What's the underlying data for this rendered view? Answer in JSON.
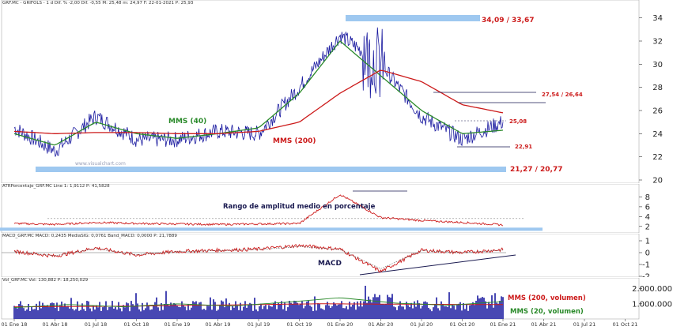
{
  "header": {
    "price": "GRF.MC - GRIFOLS - 1 d  Dif. % -2,00  Dif. -0,55  M: 25,48  m: 24,97  F: 22-01-2021  P: 25,93",
    "atr": "ATRPorcentaje_GRF.MC Line 1: 1,9112  P: 41,5828",
    "macd": "MACD_GRF.MC MACD: 0,2435  MediaSIG: 0,0761  Band_MACD: 0,0000  P: 21,7889",
    "vol": "Vol_GRF.MC  Vol: 130,882  P: 18,250,029"
  },
  "annotations": {
    "resistance": "34,09 / 33,67",
    "resistance2": "27,54 / 26,64",
    "level_25": "25,08",
    "level_22": "22,91",
    "support": "21,27 / 20,77",
    "mms40": "MMS (40)",
    "mms200": "MMS (200)",
    "atr_title": "Rango de amplitud medio en porcentaje",
    "macd_title": "MACD",
    "vol_mms200": "MMS (200, volumen)",
    "vol_mms20": "MMS (20, volumen)",
    "watermark": "www.visualchart.com"
  },
  "colors": {
    "price": "#1a1aa0",
    "mms40": "#2a8a2a",
    "mms200": "#cc1a1a",
    "support_band": "#9ec8f0",
    "annotation_red": "#cc1a1a",
    "annotation_green": "#2a8a2a",
    "annotation_navy": "#1a1a50"
  },
  "chart_data": [
    {
      "type": "line",
      "name": "price",
      "x": [
        "01 Ene 18",
        "01 Abr 18",
        "01 Jul 18",
        "01 Oct 18",
        "01 Ene 19",
        "01 Abr 19",
        "01 Jul 19",
        "01 Oct 19",
        "01 Ene 20",
        "01 Abr 20",
        "01 Jul 20",
        "01 Oct 20",
        "01 Ene 21"
      ],
      "series": [
        {
          "name": "Price",
          "values": [
            24.5,
            22.5,
            25.5,
            23.5,
            23.5,
            24.2,
            24.0,
            28.0,
            32.5,
            30.0,
            25.5,
            23.5,
            25.0
          ]
        },
        {
          "name": "MMS (40)",
          "values": [
            24.0,
            23.0,
            25.0,
            24.0,
            23.6,
            24.0,
            24.5,
            27.5,
            32.0,
            29.0,
            26.0,
            24.0,
            24.3
          ]
        },
        {
          "name": "MMS (200)",
          "values": [
            24.2,
            24.0,
            24.1,
            24.1,
            24.0,
            24.0,
            24.2,
            25.0,
            27.5,
            29.5,
            28.5,
            26.5,
            25.8
          ]
        }
      ],
      "ylim": [
        20,
        35
      ],
      "yticks": [
        "20",
        "22",
        "24",
        "26",
        "28",
        "30",
        "32",
        "34"
      ]
    },
    {
      "type": "line",
      "name": "atr",
      "values": [
        2.6,
        2.4,
        2.8,
        2.6,
        2.5,
        2.4,
        2.5,
        2.6,
        8.5,
        3.8,
        3.2,
        2.8,
        2.3
      ],
      "ylim": [
        1,
        10
      ],
      "yticks": [
        "2",
        "4",
        "6",
        "8"
      ]
    },
    {
      "type": "line",
      "name": "macd",
      "values": [
        0.1,
        -0.3,
        0.4,
        -0.2,
        0.1,
        0.2,
        0.3,
        0.6,
        0.3,
        -1.6,
        0.2,
        0.0,
        0.25
      ],
      "ylim": [
        -2,
        1.2
      ],
      "yticks": [
        "1",
        "0",
        "-1",
        "-2"
      ]
    },
    {
      "type": "bar",
      "name": "volume",
      "ylim": [
        0,
        2500000
      ],
      "yticks": [
        "2.000.000",
        "1.000.000"
      ]
    }
  ],
  "x_labels": [
    "01 Ene 18",
    "01 Abr 18",
    "01 Jul 18",
    "01 Oct 18",
    "01 Ene 19",
    "01 Abr 19",
    "01 Jul 19",
    "01 Oct 19",
    "01 Ene 20",
    "01 Abr 20",
    "01 Jul 20",
    "01 Oct 20",
    "01 Ene 21",
    "01 Abr 21",
    "01 Jul 21",
    "01 Oct 21"
  ]
}
